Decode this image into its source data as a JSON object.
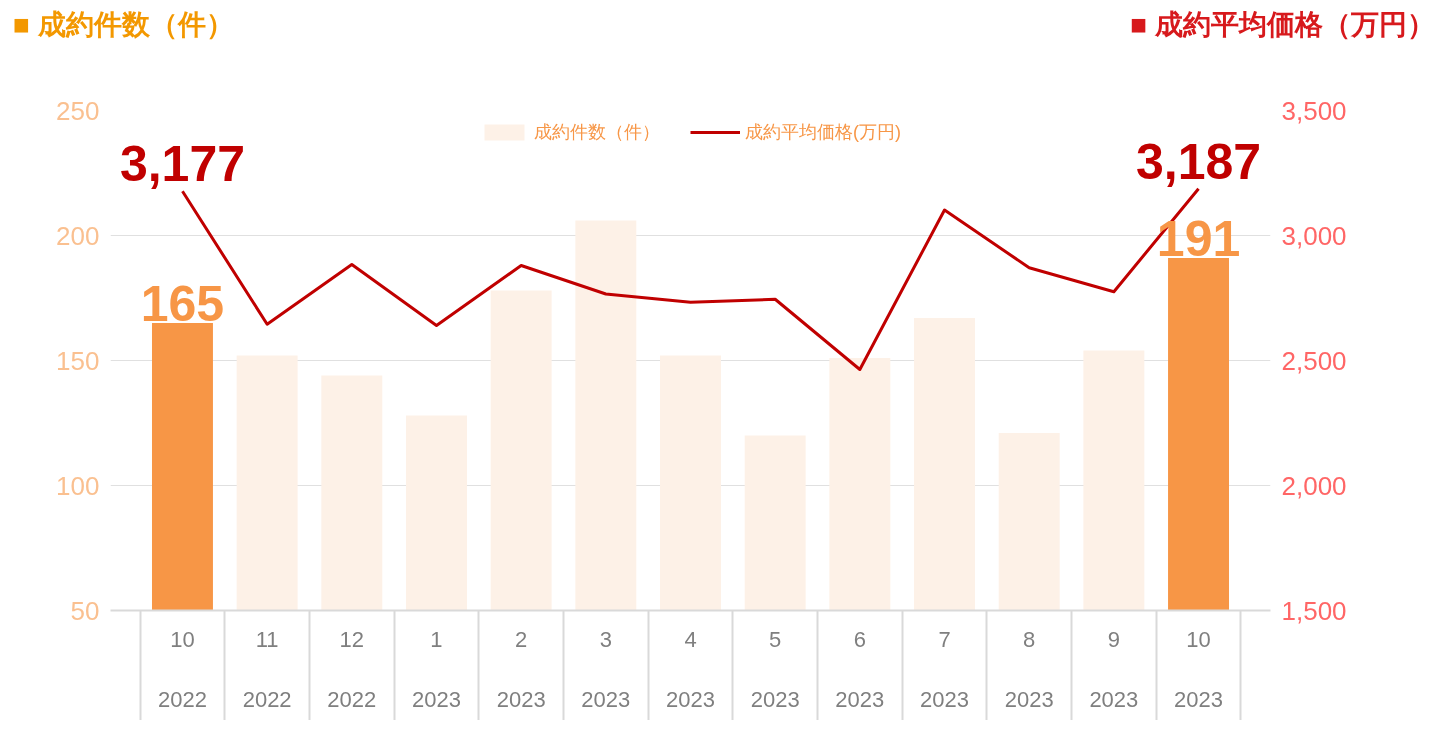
{
  "chart_data": {
    "type": "bar",
    "ylabel": "■ 成約件数（件）",
    "y2label": "■ 成約平均価格（万円）",
    "categories": [
      "10\n2022",
      "11\n2022",
      "12\n2022",
      "1\n2023",
      "2\n2023",
      "3\n2023",
      "4\n2023",
      "5\n2023",
      "6\n2023",
      "7\n2023",
      "8\n2023",
      "9\n2023",
      "10\n2023"
    ],
    "series": [
      {
        "name": "成約件数（件）",
        "color": "#fdf1e7",
        "colors": [
          "#f79646",
          "#fdf1e7",
          "#fdf1e7",
          "#fdf1e7",
          "#fdf1e7",
          "#fdf1e7",
          "#fdf1e7",
          "#fdf1e7",
          "#fdf1e7",
          "#fdf1e7",
          "#fdf1e7",
          "#fdf1e7",
          "#f79646"
        ],
        "values": [
          165,
          152,
          144,
          128,
          178,
          206,
          152,
          120,
          151,
          167,
          121,
          154,
          191
        ],
        "value_labels": [
          "165",
          null,
          null,
          null,
          null,
          null,
          null,
          null,
          null,
          null,
          null,
          null,
          "191"
        ]
      },
      {
        "name": "成約平均価格(万円)",
        "type": "line",
        "axis": "y2",
        "color": "#c00000",
        "values": [
          3177,
          2645,
          2884,
          2640,
          2880,
          2766,
          2733,
          2745,
          2464,
          3102,
          2871,
          2775,
          3187
        ],
        "value_labels": [
          "3,177",
          null,
          null,
          null,
          null,
          null,
          null,
          null,
          null,
          null,
          null,
          null,
          "3,187"
        ]
      }
    ],
    "ylim": [
      50,
      250
    ],
    "yticks": [
      50,
      100,
      150,
      200,
      250
    ],
    "y2lim": [
      1500,
      3500
    ],
    "y2ticks": [
      {
        "value": 1500,
        "label": "1,500"
      },
      {
        "value": 2000,
        "label": "2,000"
      },
      {
        "value": 2500,
        "label": "2,500"
      },
      {
        "value": 3000,
        "label": "3,000"
      },
      {
        "value": 3500,
        "label": "3,500"
      }
    ],
    "grid": "y",
    "legend": "top"
  }
}
